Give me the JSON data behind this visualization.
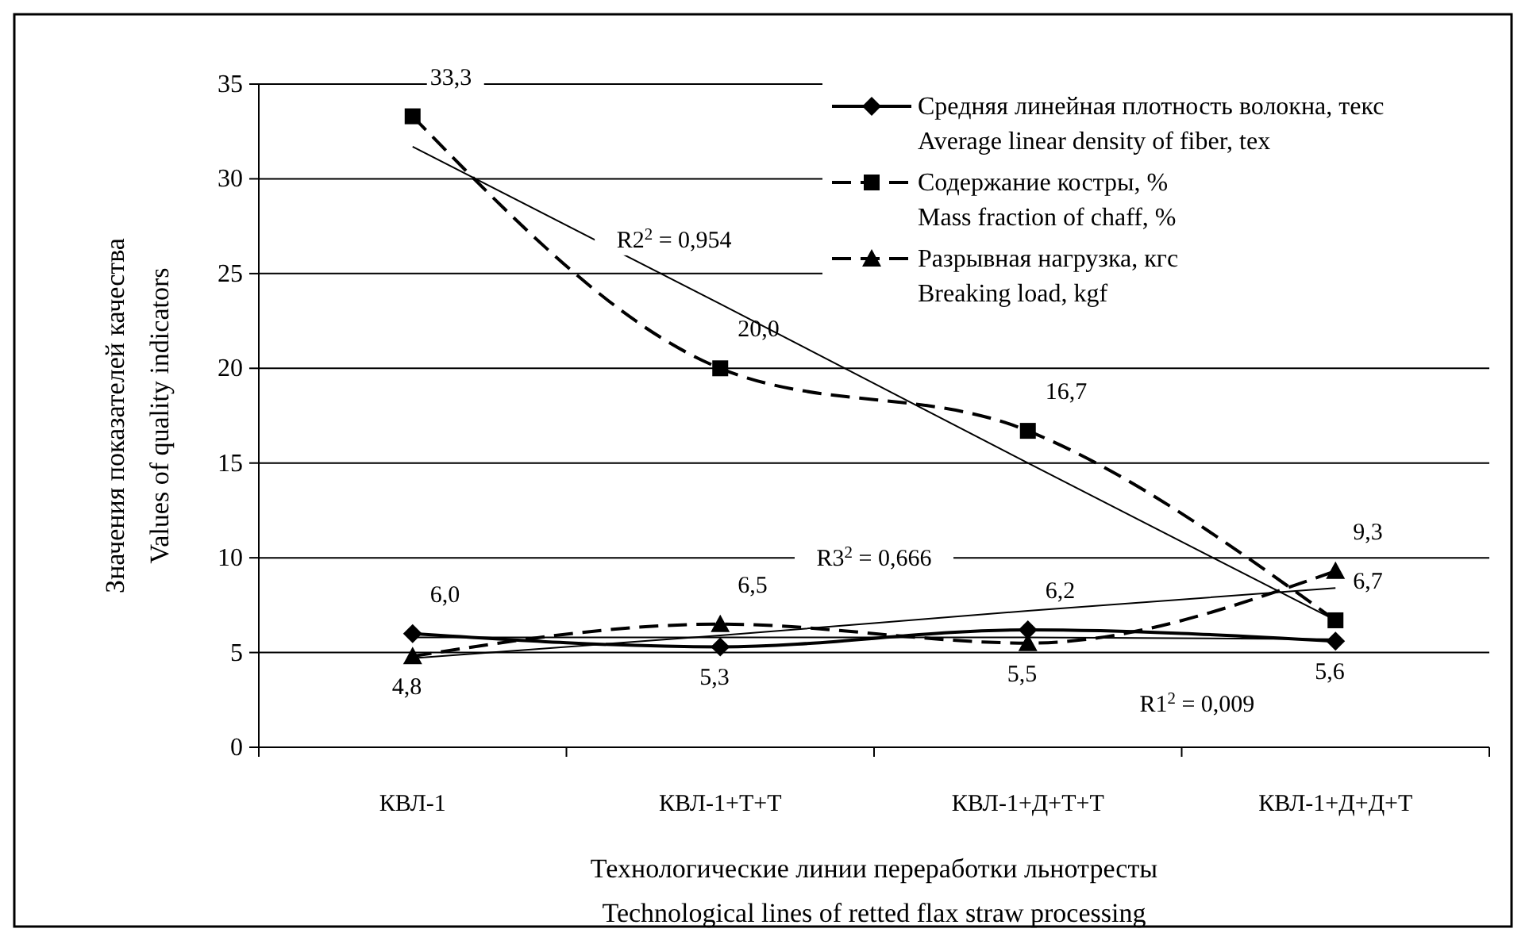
{
  "chart_data": {
    "type": "line",
    "categories": [
      "КВЛ-1",
      "КВЛ-1+Т+Т",
      "КВЛ-1+Д+Т+Т",
      "КВЛ-1+Д+Д+Т"
    ],
    "xlabel": "Технологические линии переработки льнотресты\nTechnological lines of retted flax straw processing",
    "ylabel": "Значения показателей качества\nValues of quality indicators",
    "ylim": [
      0,
      35
    ],
    "yticks": [
      0,
      5,
      10,
      15,
      20,
      25,
      30,
      35
    ],
    "grid": "y",
    "legend": "top right",
    "series": [
      {
        "name": "Средняя линейная плотность волокна, текс\nAverage linear density of fiber, tex",
        "color": "#000000",
        "marker": "diamond",
        "line_style": "solid",
        "values": [
          6.0,
          5.3,
          6.2,
          5.6
        ],
        "value_labels": [
          "6,0",
          "5,3",
          "6,2",
          "5,6"
        ]
      },
      {
        "name": "Содержание костры, %\nMass fraction of chaff, %",
        "color": "#000000",
        "marker": "square",
        "line_style": "dashed",
        "values": [
          33.3,
          20.0,
          16.7,
          6.7
        ],
        "value_labels": [
          "33,3",
          "20,0",
          "16,7",
          "6,7"
        ]
      },
      {
        "name": "Разрывная нагрузка, кгс\nBreaking load, kgf",
        "color": "#000000",
        "marker": "triangle",
        "line_style": "dashed",
        "values": [
          4.8,
          6.5,
          5.5,
          9.3
        ],
        "value_labels": [
          "4,8",
          "6,5",
          "5,5",
          "9,3"
        ]
      },
      {
        "type": "line",
        "color": "#000000",
        "line_style": "solid",
        "values": [
          5.8,
          5.8,
          5.8,
          5.7
        ]
      },
      {
        "type": "line",
        "color": "#000000",
        "line_style": "solid",
        "values": [
          31.7,
          23.4,
          15.0,
          6.7
        ]
      },
      {
        "type": "line",
        "color": "#000000",
        "line_style": "solid",
        "values": [
          4.7,
          5.9,
          7.2,
          8.4
        ]
      }
    ],
    "annotations": [
      "R2$^{2}$ = 0,954",
      "R3$^{2}$ = 0,666",
      "R1$^{2}$ = 0,009"
    ]
  }
}
